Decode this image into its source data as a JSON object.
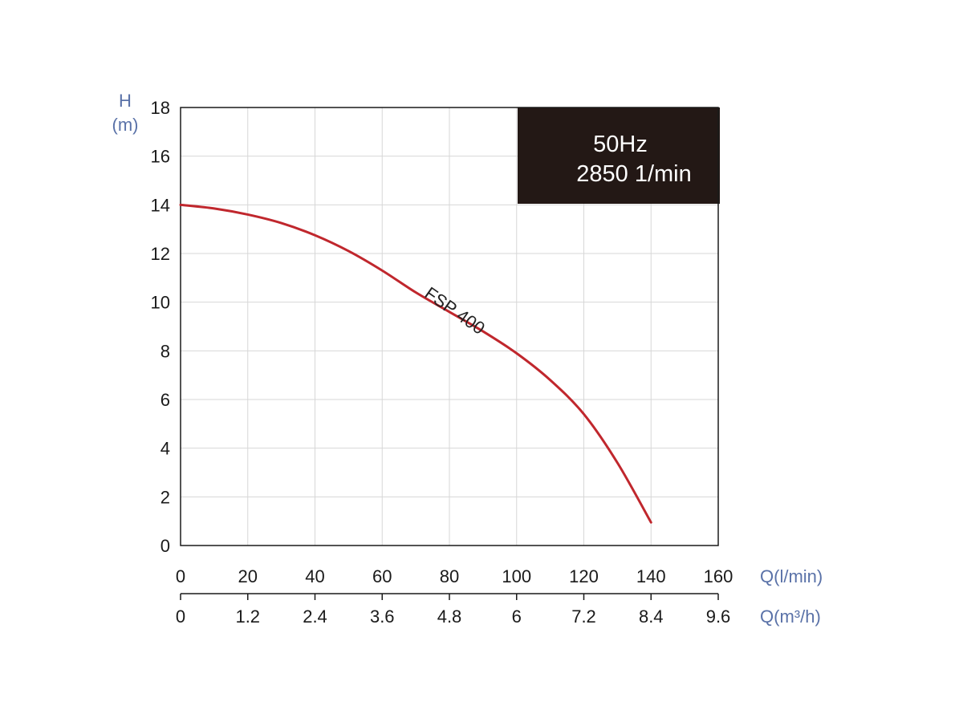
{
  "chart_data": {
    "type": "line",
    "ylabel": "H",
    "yunit": "(m)",
    "x_axes": [
      {
        "label": "Q(l/min)",
        "ticks": [
          "0",
          "20",
          "40",
          "60",
          "80",
          "100",
          "120",
          "140",
          "160"
        ],
        "range": [
          0,
          160
        ]
      },
      {
        "label": "Q(m³/h)",
        "ticks": [
          "0",
          "1.2",
          "2.4",
          "3.6",
          "4.8",
          "6",
          "7.2",
          "8.4",
          "9.6"
        ],
        "range": [
          0,
          9.6
        ]
      }
    ],
    "y_ticks": [
      "0",
      "2",
      "4",
      "6",
      "8",
      "10",
      "12",
      "14",
      "16",
      "18"
    ],
    "xlim": [
      0,
      160
    ],
    "ylim": [
      0,
      18
    ],
    "grid": true,
    "info_box": {
      "line1": "50Hz",
      "line2": "2850 1/min"
    },
    "series": [
      {
        "name": "FSP 400",
        "color": "#c0272d",
        "x": [
          0,
          10,
          20,
          30,
          40,
          50,
          60,
          70,
          80,
          90,
          100,
          110,
          120,
          130,
          140
        ],
        "y": [
          14.0,
          13.85,
          13.6,
          13.25,
          12.75,
          12.1,
          11.3,
          10.4,
          9.6,
          8.8,
          7.9,
          6.8,
          5.4,
          3.4,
          0.95
        ]
      }
    ]
  }
}
